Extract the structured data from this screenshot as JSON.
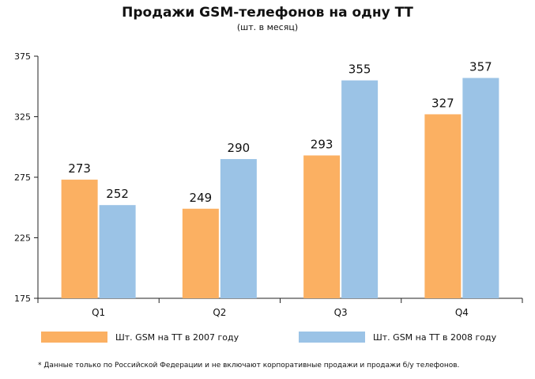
{
  "chart_data": {
    "type": "bar",
    "title": "Продажи GSM-телефонов на одну ТТ",
    "subtitle": "(шт. в месяц)",
    "xlabel": "",
    "ylabel": "",
    "categories": [
      "Q1",
      "Q2",
      "Q3",
      "Q4"
    ],
    "ylim": [
      175,
      375
    ],
    "yticks": [
      175,
      225,
      275,
      325,
      375
    ],
    "grid": false,
    "legend_position": "bottom",
    "series": [
      {
        "name": "Шт. GSM на ТТ в 2007 году",
        "color": "#fbb062",
        "values": [
          273,
          249,
          293,
          327
        ]
      },
      {
        "name": "Шт. GSM на ТТ в 2008 году",
        "color": "#9bc3e6",
        "values": [
          252,
          290,
          355,
          357
        ]
      }
    ],
    "footnote": "* Данные только по Российской Федерации и не включают корпоративные продажи и продажи б/у телефонов."
  }
}
